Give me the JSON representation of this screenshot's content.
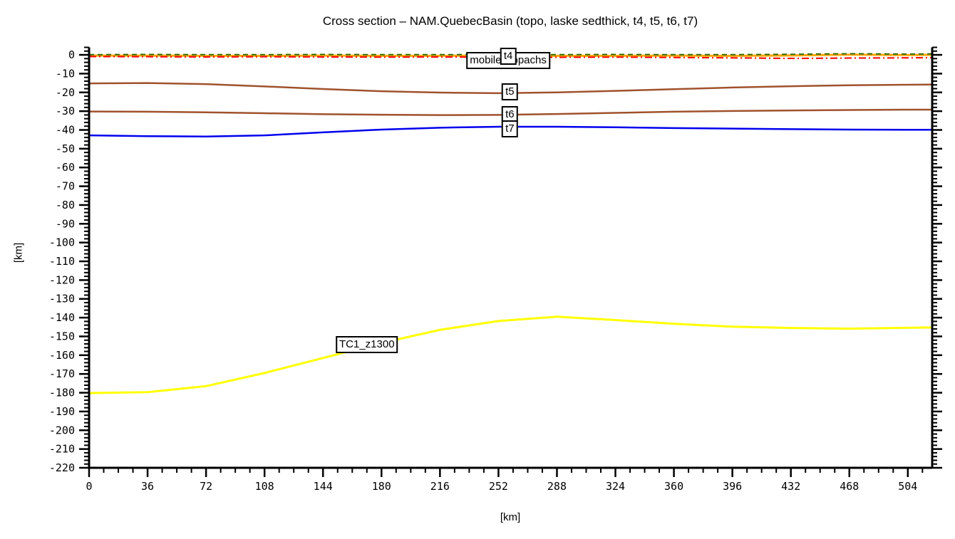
{
  "title": "Cross section – NAM.QuebecBasin (topo, laske sedthick, t4, t5, t6, t7)",
  "chart_data": {
    "type": "line",
    "title": "Cross section – NAM.QuebecBasin (topo, laske sedthick, t4, t5, t6, t7)",
    "xlabel": "[km]",
    "ylabel": "[km]",
    "xlim": [
      0,
      519
    ],
    "ylim": [
      -220,
      4
    ],
    "grid": false,
    "legend_position": "none",
    "x_major_ticks": [
      0,
      36,
      72,
      108,
      144,
      180,
      216,
      252,
      288,
      324,
      360,
      396,
      432,
      468,
      504
    ],
    "x_minor_step": 9,
    "y_major_ticks": [
      0,
      -10,
      -20,
      -30,
      -40,
      -50,
      -60,
      -70,
      -80,
      -90,
      -100,
      -110,
      -120,
      -130,
      -140,
      -150,
      -160,
      -170,
      -180,
      -190,
      -200,
      -210,
      -220
    ],
    "y_minor_step": 2,
    "x": [
      0,
      36,
      72,
      108,
      144,
      180,
      216,
      252,
      288,
      324,
      360,
      396,
      432,
      468,
      504,
      519
    ],
    "series": [
      {
        "name": "t5",
        "color": "#a0522d",
        "width": 2.5,
        "dash": "",
        "values": [
          -15.2,
          -15.0,
          -15.6,
          -16.8,
          -18.2,
          -19.4,
          -20.1,
          -20.4,
          -20.0,
          -19.2,
          -18.3,
          -17.4,
          -16.7,
          -16.2,
          -15.9,
          -15.8
        ]
      },
      {
        "name": "t6",
        "color": "#a0522d",
        "width": 2.5,
        "dash": "",
        "values": [
          -30.2,
          -30.3,
          -30.6,
          -31.1,
          -31.6,
          -31.9,
          -32.1,
          -32.0,
          -31.5,
          -30.9,
          -30.3,
          -29.9,
          -29.6,
          -29.4,
          -29.2,
          -29.2
        ]
      },
      {
        "name": "t7",
        "color": "#0000ee",
        "width": 2.5,
        "dash": "",
        "values": [
          -42.9,
          -43.3,
          -43.5,
          -42.9,
          -41.3,
          -39.8,
          -38.8,
          -38.3,
          -38.3,
          -38.6,
          -39.0,
          -39.3,
          -39.6,
          -39.8,
          -39.9,
          -39.9
        ]
      },
      {
        "name": "TC1_z1300",
        "color": "#ffff00",
        "width": 3,
        "dash": "",
        "values": [
          -180.2,
          -179.7,
          -176.5,
          -169.5,
          -161.5,
          -153.5,
          -146.5,
          -141.8,
          -139.5,
          -141.3,
          -143.3,
          -144.8,
          -145.5,
          -145.9,
          -145.4,
          -145.2
        ]
      },
      {
        "name": "laske sedthick",
        "color": "#ffa500",
        "width": 3,
        "dash": "",
        "values": [
          -0.4,
          -0.4,
          -0.5,
          -0.5,
          -0.4,
          -0.5,
          -0.5,
          -0.4,
          -0.5,
          -0.5,
          -0.4,
          -0.5,
          -0.3,
          0.1,
          -0.1,
          0.0
        ]
      },
      {
        "name": "t4",
        "color": "#ff0000",
        "width": 2,
        "dash": "10 4 2 4",
        "values": [
          -0.9,
          -1.0,
          -1.1,
          -1.0,
          -1.1,
          -1.2,
          -1.1,
          -1.2,
          -1.3,
          -1.2,
          -1.4,
          -1.6,
          -1.9,
          -1.7,
          -1.6,
          -1.5
        ]
      },
      {
        "name": "topo",
        "color": "#336b00",
        "width": 2,
        "dash": "7 5",
        "values": [
          0.1,
          0.2,
          0.1,
          0.1,
          0.2,
          0.1,
          0.1,
          0.2,
          0.1,
          0.2,
          0.1,
          0.1,
          0.3,
          0.6,
          0.4,
          0.5
        ]
      }
    ],
    "annotations": [
      {
        "text": "mobile isopachs",
        "x_km": 258,
        "z_km": -3.0
      },
      {
        "text": "t4",
        "x_km": 258,
        "z_km": -0.8
      },
      {
        "text": "t5",
        "x_km": 259,
        "z_km": -19.7
      },
      {
        "text": "t6",
        "x_km": 259,
        "z_km": -31.9
      },
      {
        "text": "t7",
        "x_km": 259,
        "z_km": -39.4
      },
      {
        "text": "TC1_z1300",
        "x_km": 171,
        "z_km": -154.5
      }
    ]
  }
}
